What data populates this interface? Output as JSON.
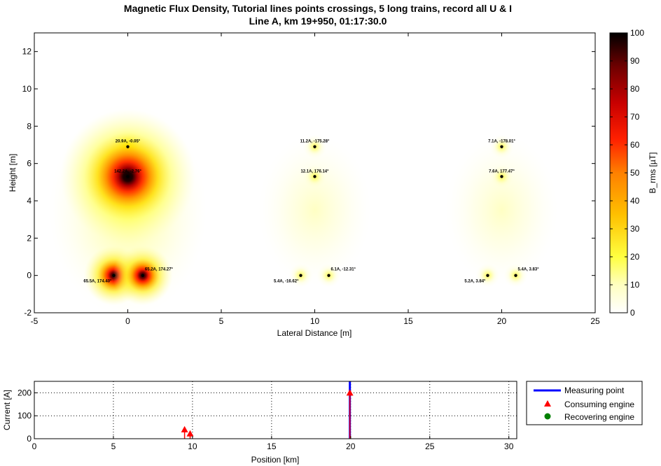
{
  "figure": {
    "title_line1": "Magnetic Flux Density, Tutorial lines points crossings, 5 long trains, record all U & I",
    "title_line2": "Line A, km 19+950, 01:17:30.0"
  },
  "chart_data": [
    {
      "type": "heatmap",
      "title": "Magnetic Flux Density, Tutorial lines points crossings, 5 long trains, record all U & I / Line A, km 19+950, 01:17:30.0",
      "xlabel": "Lateral Distance [m]",
      "ylabel": "Height [m]",
      "xlim": [
        -5,
        25
      ],
      "ylim": [
        -2,
        13
      ],
      "xticks": [
        -5,
        0,
        5,
        10,
        15,
        20,
        25
      ],
      "yticks": [
        -2,
        0,
        2,
        4,
        6,
        8,
        10,
        12
      ],
      "colorbar": {
        "label": "B_rms [µT]",
        "range": [
          0,
          100
        ],
        "ticks": [
          0,
          10,
          20,
          30,
          40,
          50,
          60,
          70,
          80,
          90,
          100
        ],
        "colormap": "hot (inverted)"
      },
      "conductors": [
        {
          "x": 0.0,
          "y": 6.9,
          "label": "20.9A, -0.05°",
          "current": 20.9
        },
        {
          "x": 0.0,
          "y": 5.3,
          "label": "142.2A, -2.76°",
          "current": 142.2
        },
        {
          "x": -0.75,
          "y": 0.0,
          "label": "65.5A, 174.40°",
          "current": 65.5
        },
        {
          "x": 0.8,
          "y": 0.0,
          "label": "65.2A, 174.27°",
          "current": 65.2
        },
        {
          "x": 10.0,
          "y": 6.9,
          "label": "11.2A, -175.28°",
          "current": 11.2
        },
        {
          "x": 10.0,
          "y": 5.3,
          "label": "12.1A, 176.14°",
          "current": 12.1
        },
        {
          "x": 9.25,
          "y": 0.0,
          "label": "5.4A, -16.62°",
          "current": 5.4
        },
        {
          "x": 10.75,
          "y": 0.0,
          "label": "6.1A, -12.31°",
          "current": 6.1
        },
        {
          "x": 20.0,
          "y": 6.9,
          "label": "7.1A, -178.01°",
          "current": 7.1
        },
        {
          "x": 20.0,
          "y": 5.3,
          "label": "7.6A, 177.47°",
          "current": 7.6
        },
        {
          "x": 19.25,
          "y": 0.0,
          "label": "5.2A, 3.84°",
          "current": 5.2
        },
        {
          "x": 20.75,
          "y": 0.0,
          "label": "5.4A, 3.83°",
          "current": 5.4
        }
      ]
    },
    {
      "type": "scatter",
      "xlabel": "Position [km]",
      "ylabel": "Current [A]",
      "xlim": [
        0,
        30.5
      ],
      "ylim": [
        0,
        250
      ],
      "xticks": [
        0,
        5,
        10,
        15,
        20,
        25,
        30
      ],
      "yticks": [
        0,
        100,
        200
      ],
      "grid": true,
      "legend_placement": "outside-right",
      "series": [
        {
          "name": "Measuring point",
          "kind": "vertical-line",
          "color": "#0000ff",
          "x": [
            19.95
          ]
        },
        {
          "name": "Consuming engine",
          "kind": "triangle",
          "color": "#ff0000",
          "x": [
            9.5,
            9.85,
            19.95
          ],
          "y": [
            40,
            22,
            200
          ]
        },
        {
          "name": "Recovering engine",
          "kind": "circle",
          "color": "#008000",
          "x": [],
          "y": []
        }
      ]
    }
  ]
}
